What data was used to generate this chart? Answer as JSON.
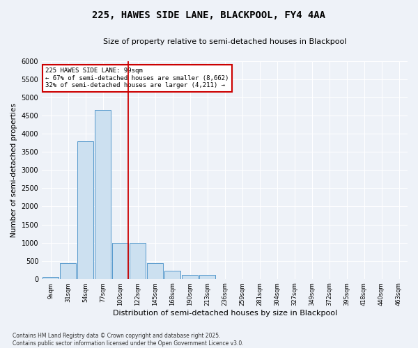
{
  "title": "225, HAWES SIDE LANE, BLACKPOOL, FY4 4AA",
  "subtitle": "Size of property relative to semi-detached houses in Blackpool",
  "xlabel": "Distribution of semi-detached houses by size in Blackpool",
  "ylabel": "Number of semi-detached properties",
  "categories": [
    "9sqm",
    "31sqm",
    "54sqm",
    "77sqm",
    "100sqm",
    "122sqm",
    "145sqm",
    "168sqm",
    "190sqm",
    "213sqm",
    "236sqm",
    "259sqm",
    "281sqm",
    "304sqm",
    "327sqm",
    "349sqm",
    "372sqm",
    "395sqm",
    "418sqm",
    "440sqm",
    "463sqm"
  ],
  "values": [
    50,
    430,
    3800,
    4650,
    1000,
    1000,
    430,
    220,
    110,
    110,
    0,
    0,
    0,
    0,
    0,
    0,
    0,
    0,
    0,
    0,
    0
  ],
  "bar_color": "#cce0f0",
  "bar_edge_color": "#5599cc",
  "vline_color": "#cc0000",
  "annotation_text": "225 HAWES SIDE LANE: 99sqm\n← 67% of semi-detached houses are smaller (8,662)\n32% of semi-detached houses are larger (4,211) →",
  "annotation_box_color": "#ffffff",
  "annotation_box_edge_color": "#cc0000",
  "ylim": [
    0,
    6000
  ],
  "yticks": [
    0,
    500,
    1000,
    1500,
    2000,
    2500,
    3000,
    3500,
    4000,
    4500,
    5000,
    5500,
    6000
  ],
  "background_color": "#eef2f8",
  "grid_color": "#ffffff",
  "title_fontsize": 10,
  "subtitle_fontsize": 8,
  "xlabel_fontsize": 8,
  "ylabel_fontsize": 7.5,
  "footnote": "Contains HM Land Registry data © Crown copyright and database right 2025.\nContains public sector information licensed under the Open Government Licence v3.0."
}
